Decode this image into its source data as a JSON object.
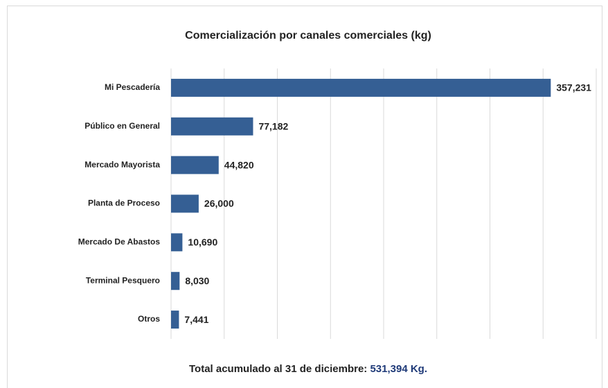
{
  "chart_data": {
    "type": "barh",
    "title": "Comercialización por canales comerciales (kg)",
    "categories": [
      "Mi Pescadería",
      "Público en General",
      "Mercado Mayorista",
      "Planta de Proceso",
      "Mercado De Abastos",
      "Terminal Pesquero",
      "Otros"
    ],
    "values": [
      357231,
      77182,
      44820,
      26000,
      10690,
      8030,
      7441
    ],
    "value_labels": [
      "357,231",
      "77,182",
      "44,820",
      "26,000",
      "10,690",
      "8,030",
      "7,441"
    ],
    "color": "#355f94",
    "xlim": [
      0,
      400000
    ],
    "xticks": [
      0,
      50000,
      100000,
      150000,
      200000,
      250000,
      300000,
      350000,
      400000
    ],
    "grid": true,
    "footnote": {
      "text": "Total acumulado al 31 de diciembre:",
      "total": "531,394 Kg.",
      "total_color": "#1f3a78"
    }
  }
}
